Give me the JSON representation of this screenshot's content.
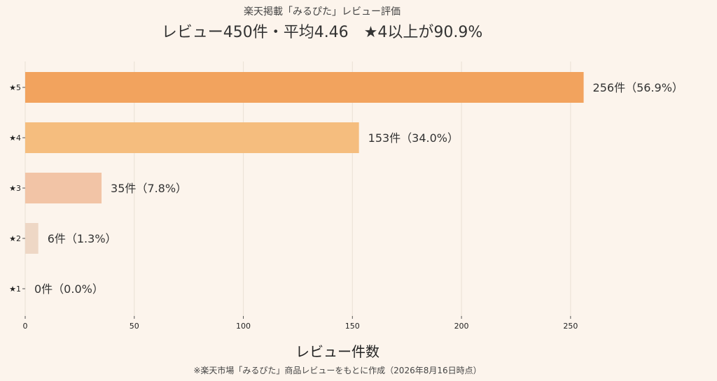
{
  "chart_data": {
    "type": "bar",
    "orientation": "horizontal",
    "subtitle": "楽天掲載「みるぴた」レビュー評価",
    "title": "レビュー450件・平均4.46　★4以上が90.9%",
    "categories": [
      "★5",
      "★4",
      "★3",
      "★2",
      "★1"
    ],
    "values": [
      256,
      153,
      35,
      6,
      0
    ],
    "value_labels": [
      "256件（56.9%）",
      "153件（34.0%）",
      "35件（7.8%）",
      "6件（1.3%）",
      "0件（0.0%）"
    ],
    "colors": [
      "#f2a35e",
      "#f5bd7e",
      "#f2c4a6",
      "#eed7c5",
      "#eee2d6"
    ],
    "xlabel": "レビュー件数",
    "xlim": [
      0,
      260
    ],
    "xticks": [
      0,
      50,
      100,
      150,
      200,
      250
    ],
    "grid": true,
    "footnote": "※楽天市場「みるぴた」商品レビューをもとに作成（2026年8月16日時点）"
  }
}
